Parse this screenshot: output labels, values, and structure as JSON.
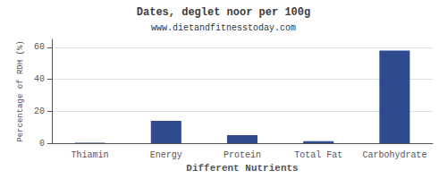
{
  "chart_data": {
    "type": "bar",
    "title": "Dates, deglet noor per 100g",
    "subtitle": "www.dietandfitnesstoday.com",
    "xlabel": "Different Nutrients",
    "ylabel": "Percentage of RDH (%)",
    "categories": [
      "Thiamin",
      "Energy",
      "Protein",
      "Total Fat",
      "Carbohydrate"
    ],
    "values": [
      0.3,
      14,
      5,
      1.2,
      58
    ],
    "color": "#2e4b8f",
    "ylim": [
      0,
      65
    ],
    "yticks": [
      0,
      20,
      40,
      60
    ],
    "grid": true
  }
}
